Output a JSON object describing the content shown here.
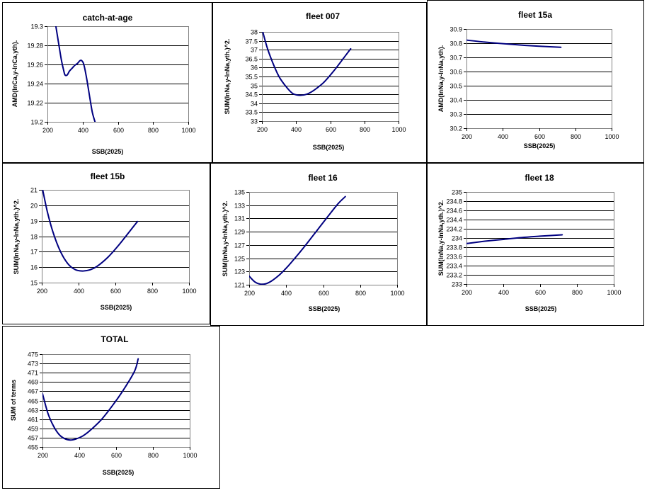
{
  "colors": {
    "line": "#000080",
    "grid": "#000000",
    "plot_border": "#808080",
    "panel_border": "#000000",
    "background": "#ffffff"
  },
  "chart_data": [
    {
      "id": "catch-at-age",
      "type": "line",
      "title": "catch-at-age",
      "xlabel": "SSB(2025)",
      "ylabel": "AMD(lnCa,y-lnCa,yth).",
      "xlim": [
        200,
        1000
      ],
      "ylim": [
        19.2,
        19.3
      ],
      "xticks": [
        "200",
        "400",
        "600",
        "800",
        "1000"
      ],
      "yticks": [
        "19.2",
        "19.22",
        "19.24",
        "19.26",
        "19.28",
        "19.3"
      ],
      "grid": true,
      "legend": "none",
      "series": [
        {
          "x": [
            248,
            262,
            278,
            292,
            300,
            312,
            325,
            340,
            355,
            370,
            385,
            395,
            405,
            415,
            425,
            440,
            455,
            470
          ],
          "y": [
            19.3,
            19.284,
            19.266,
            19.254,
            19.249,
            19.249,
            19.253,
            19.256,
            19.259,
            19.261,
            19.264,
            19.264,
            19.261,
            19.253,
            19.243,
            19.226,
            19.21,
            19.2
          ]
        }
      ]
    },
    {
      "id": "fleet-007",
      "type": "line",
      "title": "fleet 007",
      "xlabel": "SSB(2025)",
      "ylabel": "SUM(lnNa,y-lnNa,yth.)^2.",
      "xlim": [
        200,
        1000
      ],
      "ylim": [
        33,
        38
      ],
      "xticks": [
        "200",
        "400",
        "600",
        "800",
        "1000"
      ],
      "yticks": [
        "33",
        "33.5",
        "34",
        "34.5",
        "35",
        "35.5",
        "36",
        "36.5",
        "37",
        "37.5",
        "38"
      ],
      "grid": true,
      "legend": "none",
      "series": [
        {
          "x": [
            205,
            230,
            260,
            300,
            340,
            380,
            420,
            460,
            500,
            560,
            620,
            680,
            720
          ],
          "y": [
            38.0,
            37.15,
            36.35,
            35.5,
            34.95,
            34.55,
            34.45,
            34.5,
            34.7,
            35.15,
            35.8,
            36.55,
            37.05
          ]
        }
      ]
    },
    {
      "id": "fleet-15a",
      "type": "line",
      "title": "fleet 15a",
      "xlabel": "SSB(2025)",
      "ylabel": "AMD(lnNa,y-lnNa,yth).",
      "xlim": [
        200,
        1000
      ],
      "ylim": [
        30.2,
        30.9
      ],
      "xticks": [
        "200",
        "400",
        "600",
        "800",
        "1000"
      ],
      "yticks": [
        "30.2",
        "30.3",
        "30.4",
        "30.5",
        "30.6",
        "30.7",
        "30.8",
        "30.9"
      ],
      "grid": true,
      "legend": "none",
      "series": [
        {
          "x": [
            200,
            300,
            400,
            500,
            600,
            720
          ],
          "y": [
            30.822,
            30.808,
            30.797,
            30.787,
            30.779,
            30.771
          ]
        }
      ]
    },
    {
      "id": "fleet-15b",
      "type": "line",
      "title": "fleet 15b",
      "xlabel": "SSB(2025)",
      "ylabel": "SUM(lnNa,y-lnNa,yth.)^2.",
      "xlim": [
        200,
        1000
      ],
      "ylim": [
        15,
        21
      ],
      "xticks": [
        "200",
        "400",
        "600",
        "800",
        "1000"
      ],
      "yticks": [
        "15",
        "16",
        "17",
        "18",
        "19",
        "20",
        "21"
      ],
      "grid": true,
      "legend": "none",
      "series": [
        {
          "x": [
            205,
            230,
            260,
            300,
            340,
            380,
            420,
            460,
            500,
            560,
            620,
            680,
            720
          ],
          "y": [
            21.0,
            19.6,
            18.3,
            17.05,
            16.25,
            15.85,
            15.75,
            15.82,
            16.05,
            16.65,
            17.45,
            18.35,
            18.95
          ]
        }
      ]
    },
    {
      "id": "fleet-16",
      "type": "line",
      "title": "fleet 16",
      "xlabel": "SSB(2025)",
      "ylabel": "SUM(lnNa,y-lnNa,yth.)^2.",
      "xlim": [
        200,
        1000
      ],
      "ylim": [
        121,
        135
      ],
      "xticks": [
        "200",
        "400",
        "600",
        "800",
        "1000"
      ],
      "yticks": [
        "121",
        "123",
        "125",
        "127",
        "129",
        "131",
        "133",
        "135"
      ],
      "grid": true,
      "legend": "none",
      "series": [
        {
          "x": [
            200,
            230,
            260,
            290,
            320,
            360,
            400,
            450,
            500,
            560,
            620,
            680,
            720
          ],
          "y": [
            122.3,
            121.45,
            121.1,
            121.15,
            121.55,
            122.4,
            123.5,
            125.1,
            126.8,
            128.95,
            131.1,
            133.2,
            134.3
          ]
        }
      ]
    },
    {
      "id": "fleet-18",
      "type": "line",
      "title": "fleet 18",
      "xlabel": "SSB(2025)",
      "ylabel": "SUM(lnNa,y-lnNa,yth.)^2.",
      "xlim": [
        200,
        1000
      ],
      "ylim": [
        233,
        235
      ],
      "xticks": [
        "200",
        "400",
        "600",
        "800",
        "1000"
      ],
      "yticks": [
        "233",
        "233.2",
        "233.4",
        "233.6",
        "233.8",
        "234",
        "234.2",
        "234.4",
        "234.6",
        "234.8",
        "235"
      ],
      "grid": true,
      "legend": "none",
      "series": [
        {
          "x": [
            200,
            300,
            400,
            500,
            600,
            720
          ],
          "y": [
            233.88,
            233.93,
            233.97,
            234.01,
            234.04,
            234.07
          ]
        }
      ]
    },
    {
      "id": "total",
      "type": "line",
      "title": "TOTAL",
      "xlabel": "SSB(2025)",
      "ylabel": "SUM of terms",
      "xlim": [
        200,
        1000
      ],
      "ylim": [
        455,
        475
      ],
      "xticks": [
        "200",
        "400",
        "600",
        "800",
        "1000"
      ],
      "yticks": [
        "455",
        "457",
        "459",
        "461",
        "463",
        "465",
        "467",
        "469",
        "471",
        "473",
        "475"
      ],
      "grid": true,
      "legend": "none",
      "series": [
        {
          "x": [
            200,
            230,
            260,
            290,
            320,
            350,
            380,
            420,
            460,
            520,
            580,
            640,
            700,
            720
          ],
          "y": [
            466.5,
            462.2,
            459.5,
            457.7,
            456.8,
            456.5,
            456.7,
            457.4,
            458.6,
            460.9,
            463.9,
            467.3,
            471.3,
            474.0
          ]
        }
      ]
    }
  ]
}
